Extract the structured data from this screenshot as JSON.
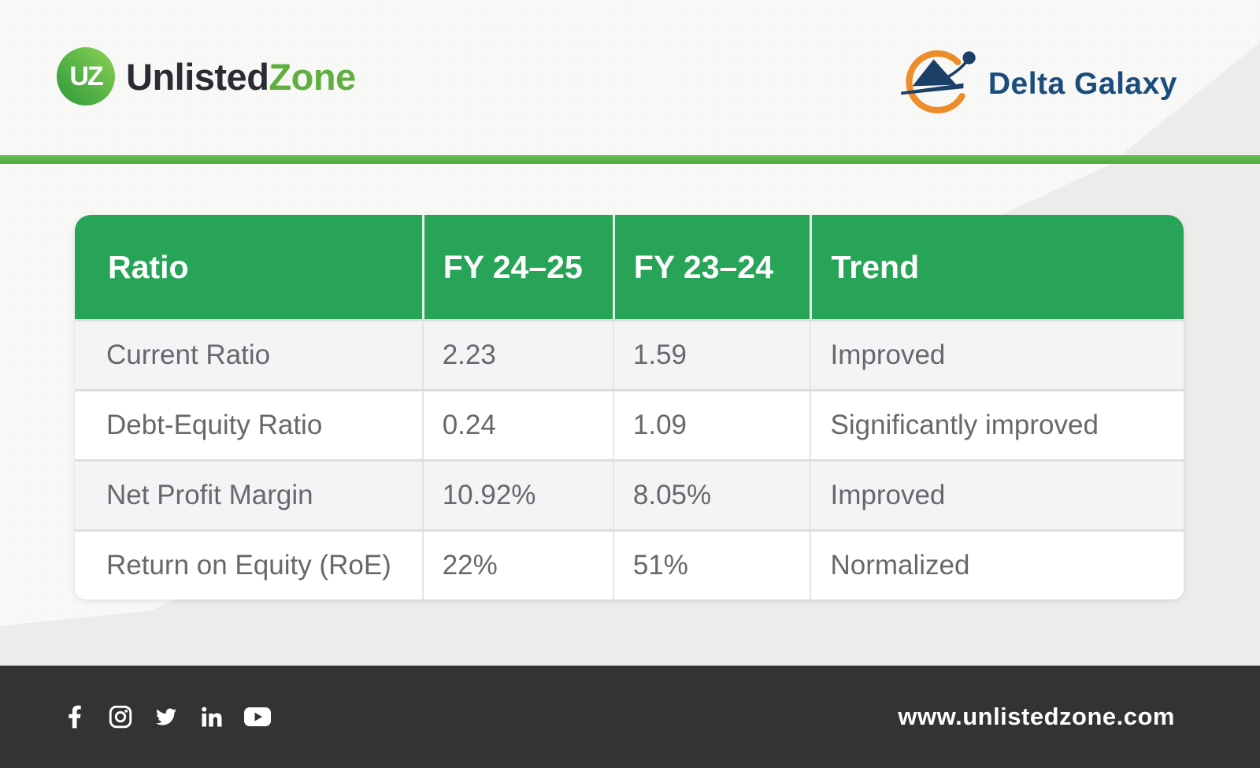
{
  "brand": {
    "badge_text": "UZ",
    "name_primary": "Unlisted",
    "name_secondary": "Zone"
  },
  "partner": {
    "name": "Delta Galaxy"
  },
  "table": {
    "columns": [
      "Ratio",
      "FY 24–25",
      "FY 23–24",
      "Trend"
    ],
    "rows": [
      [
        "Current Ratio",
        "2.23",
        "1.59",
        "Improved"
      ],
      [
        "Debt-Equity Ratio",
        "0.24",
        "1.09",
        "Significantly improved"
      ],
      [
        "Net Profit Margin",
        "10.92%",
        "8.05%",
        "Improved"
      ],
      [
        "Return on Equity (RoE)",
        "22%",
        "51%",
        "Normalized"
      ]
    ]
  },
  "footer": {
    "website": "www.unlistedzone.com",
    "social_icons": [
      "facebook-icon",
      "instagram-icon",
      "twitter-icon",
      "linkedin-icon",
      "youtube-icon"
    ]
  },
  "colors": {
    "table_header_green": "#27a457",
    "divider_green": "#5cb848",
    "logo_green": "#5fae3f",
    "partner_navy": "#1c4c7c",
    "partner_orange": "#ed8c2b",
    "footer_dark": "#333333",
    "row_alt_gray": "#f3f4f6",
    "body_text_gray": "#66686b"
  }
}
